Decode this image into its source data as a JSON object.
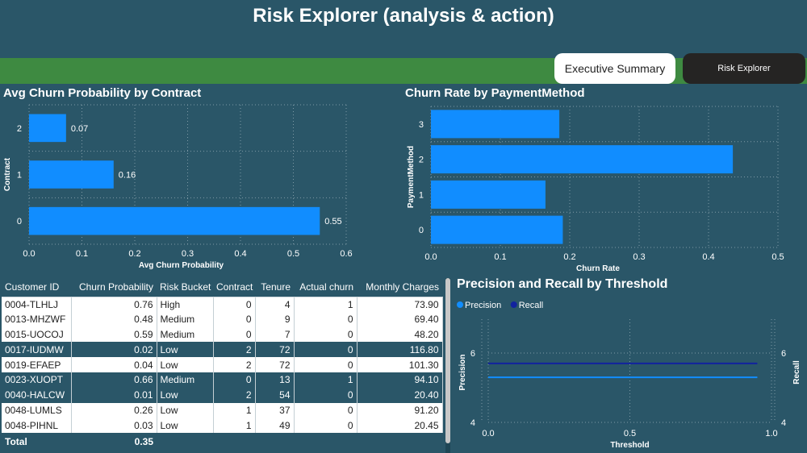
{
  "header": {
    "title": "Risk Explorer (analysis & action)"
  },
  "nav": {
    "executive_summary": "Executive Summary",
    "risk_explorer": "Risk Explorer"
  },
  "colors": {
    "background": "#2a5668",
    "nav_band": "#3e8a41",
    "bar": "#118dff",
    "precision": "#118dff",
    "recall": "#12239e"
  },
  "charts": {
    "contract": {
      "title": "Avg Churn Probability by Contract",
      "xlabel": "Avg Churn Probability",
      "ylabel": "Contract"
    },
    "payment": {
      "title": "Churn Rate by PaymentMethod",
      "xlabel": "Churn Rate",
      "ylabel": "PaymentMethod"
    },
    "pr": {
      "title": "Precision and Recall by Threshold",
      "xlabel": "Threshold",
      "ylabel_left": "Precision",
      "ylabel_right": "Recall",
      "legend": [
        "Precision",
        "Recall"
      ]
    }
  },
  "chart_data": [
    {
      "type": "bar",
      "orientation": "horizontal",
      "title": "Avg Churn Probability by Contract",
      "xlabel": "Avg Churn Probability",
      "ylabel": "Contract",
      "categories": [
        "2",
        "1",
        "0"
      ],
      "values": [
        0.07,
        0.16,
        0.55
      ],
      "data_labels": [
        "0.07",
        "0.16",
        "0.55"
      ],
      "xlim": [
        0,
        0.6
      ],
      "xticks": [
        "0.0",
        "0.1",
        "0.2",
        "0.3",
        "0.4",
        "0.5",
        "0.6"
      ],
      "grid": true
    },
    {
      "type": "bar",
      "orientation": "horizontal",
      "title": "Churn Rate by PaymentMethod",
      "xlabel": "Churn Rate",
      "ylabel": "PaymentMethod",
      "categories": [
        "3",
        "2",
        "1",
        "0"
      ],
      "values": [
        0.185,
        0.435,
        0.165,
        0.19
      ],
      "xlim": [
        0,
        0.5
      ],
      "xticks": [
        "0.0",
        "0.1",
        "0.2",
        "0.3",
        "0.4",
        "0.5"
      ],
      "grid": true
    },
    {
      "type": "line",
      "title": "Precision and Recall by Threshold",
      "xlabel": "Threshold",
      "ylabel": "Precision",
      "y2label": "Recall",
      "series": [
        {
          "name": "Precision",
          "x": [
            0.0,
            0.95
          ],
          "y": [
            5.3,
            5.3
          ]
        },
        {
          "name": "Recall",
          "x": [
            0.0,
            0.95
          ],
          "y": [
            5.7,
            5.7
          ]
        }
      ],
      "xlim": [
        0,
        1.0
      ],
      "ylim": [
        4,
        6
      ],
      "xticks": [
        "0.0",
        "0.5",
        "1.0"
      ],
      "yticks": [
        "4",
        "6"
      ],
      "legend": "top-left",
      "grid": true
    }
  ],
  "table": {
    "columns": [
      "Customer ID",
      "Churn Probability",
      "Risk Bucket",
      "Contract",
      "Tenure",
      "Actual churn",
      "Monthly Charges"
    ],
    "rows": [
      [
        "0004-TLHLJ",
        "0.76",
        "High",
        "0",
        "4",
        "1",
        "73.90"
      ],
      [
        "0013-MHZWF",
        "0.48",
        "Medium",
        "0",
        "9",
        "0",
        "69.40"
      ],
      [
        "0015-UOCOJ",
        "0.59",
        "Medium",
        "0",
        "7",
        "0",
        "48.20"
      ],
      [
        "0017-IUDMW",
        "0.02",
        "Low",
        "2",
        "72",
        "0",
        "116.80"
      ],
      [
        "0019-EFAEP",
        "0.04",
        "Low",
        "2",
        "72",
        "0",
        "101.30"
      ],
      [
        "0023-XUOPT",
        "0.66",
        "Medium",
        "0",
        "13",
        "1",
        "94.10"
      ],
      [
        "0040-HALCW",
        "0.01",
        "Low",
        "2",
        "54",
        "0",
        "20.40"
      ],
      [
        "0048-LUMLS",
        "0.26",
        "Low",
        "1",
        "37",
        "0",
        "91.20"
      ],
      [
        "0048-PIHNL",
        "0.03",
        "Low",
        "1",
        "49",
        "0",
        "20.45"
      ]
    ],
    "total": {
      "label": "Total",
      "churn_probability": "0.35"
    }
  }
}
